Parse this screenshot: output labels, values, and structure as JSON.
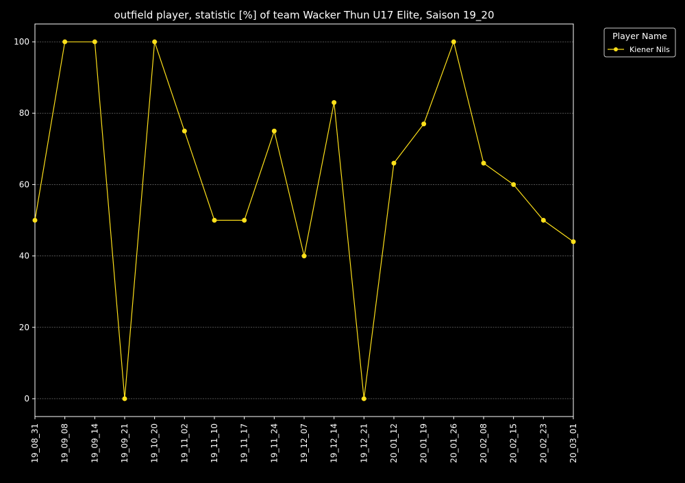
{
  "chart_data": {
    "type": "line",
    "title": "outfield player, statistic [%] of team Wacker Thun U17 Elite, Saison 19_20",
    "xlabel": "",
    "ylabel": "",
    "categories": [
      "19_08_31",
      "19_09_08",
      "19_09_14",
      "19_09_21",
      "19_10_20",
      "19_11_02",
      "19_11_10",
      "19_11_17",
      "19_11_24",
      "19_12_07",
      "19_12_14",
      "19_12_21",
      "20_01_12",
      "20_01_19",
      "20_01_26",
      "20_02_08",
      "20_02_15",
      "20_02_23",
      "20_03_01"
    ],
    "series": [
      {
        "name": "Kiener Nils",
        "color": "#ffe11a",
        "values": [
          50,
          100,
          100,
          0,
          100,
          75,
          50,
          50,
          75,
          40,
          83,
          0,
          66,
          77,
          100,
          66,
          60,
          50,
          44
        ]
      }
    ],
    "ylim": [
      -5,
      105
    ],
    "yticks": [
      0,
      20,
      40,
      60,
      80,
      100
    ],
    "grid": true,
    "legend": {
      "title": "Player Name",
      "placement": "outside-top-right"
    },
    "background": "#000000",
    "foreground": "#ffffff"
  }
}
